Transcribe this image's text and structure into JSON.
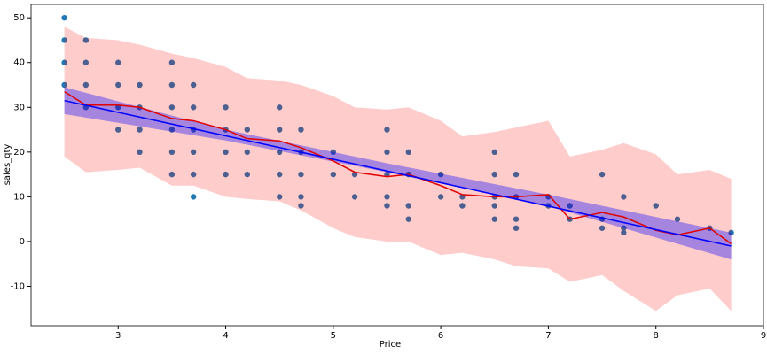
{
  "chart_data": {
    "type": "scatter",
    "xlabel": "Price",
    "ylabel": "sales_qty",
    "xlim": [
      2.19,
      9.0
    ],
    "ylim": [
      -18.8,
      53
    ],
    "xticks": [
      3,
      4,
      5,
      6,
      7,
      8,
      9
    ],
    "yticks": [
      -10,
      0,
      10,
      20,
      30,
      40,
      50
    ],
    "points": {
      "color": "#1f77b4",
      "x": [
        2.5,
        2.5,
        2.5,
        2.5,
        2.7,
        2.7,
        2.7,
        2.7,
        3.0,
        3.0,
        3.0,
        3.0,
        3.2,
        3.2,
        3.2,
        3.2,
        3.5,
        3.5,
        3.5,
        3.5,
        3.5,
        3.5,
        3.7,
        3.7,
        3.7,
        3.7,
        3.7,
        3.7,
        4.0,
        4.0,
        4.0,
        4.0,
        4.2,
        4.2,
        4.2,
        4.5,
        4.5,
        4.5,
        4.5,
        4.5,
        4.7,
        4.7,
        4.7,
        4.7,
        4.7,
        5.0,
        5.0,
        5.2,
        5.2,
        5.5,
        5.5,
        5.5,
        5.5,
        5.5,
        5.7,
        5.7,
        5.7,
        5.7,
        6.0,
        6.0,
        6.2,
        6.2,
        6.5,
        6.5,
        6.5,
        6.5,
        6.5,
        6.7,
        6.7,
        6.7,
        6.7,
        7.0,
        7.0,
        7.2,
        7.2,
        7.5,
        7.5,
        7.5,
        7.7,
        7.7,
        7.7,
        8.0,
        8.2,
        8.5,
        8.7
      ],
      "values": [
        50,
        45,
        40,
        35,
        45,
        40,
        35,
        30,
        40,
        35,
        30,
        25,
        35,
        30,
        25,
        20,
        40,
        35,
        30,
        25,
        20,
        15,
        35,
        30,
        25,
        20,
        15,
        10,
        30,
        25,
        20,
        15,
        25,
        20,
        15,
        30,
        25,
        20,
        15,
        10,
        25,
        20,
        15,
        10,
        8,
        20,
        15,
        15,
        10,
        25,
        20,
        15,
        10,
        8,
        20,
        15,
        8,
        5,
        15,
        10,
        10,
        8,
        20,
        15,
        10,
        8,
        5,
        15,
        10,
        5,
        3,
        10,
        8,
        8,
        5,
        15,
        5,
        3,
        10,
        3,
        2,
        8,
        5,
        3,
        2
      ]
    },
    "band": {
      "color": "#ff0000",
      "alpha": 0.2,
      "x": [
        2.5,
        2.7,
        3.0,
        3.2,
        3.5,
        3.7,
        4.0,
        4.2,
        4.5,
        4.7,
        5.0,
        5.2,
        5.5,
        5.7,
        6.0,
        6.2,
        6.5,
        6.7,
        7.0,
        7.2,
        7.5,
        7.7,
        8.0,
        8.2,
        8.5,
        8.7
      ],
      "lower": [
        19,
        15.5,
        16,
        16.5,
        12.5,
        12.5,
        10,
        9.5,
        9,
        7,
        3,
        1,
        0,
        0,
        -3,
        -2.5,
        -4,
        -5.5,
        -6,
        -9,
        -7.5,
        -11,
        -15.5,
        -12,
        -10.5,
        -15.5
      ],
      "upper": [
        48,
        45.5,
        45,
        44,
        42,
        41,
        39,
        36.5,
        36,
        35,
        32.5,
        30,
        29.5,
        30,
        27,
        23.5,
        24.5,
        25.5,
        27,
        19,
        20.5,
        22,
        19.5,
        15,
        16,
        14
      ]
    },
    "mean_line": {
      "color": "#e00000",
      "x": [
        2.5,
        2.7,
        3.0,
        3.2,
        3.5,
        3.7,
        4.0,
        4.2,
        4.5,
        4.7,
        5.0,
        5.2,
        5.5,
        5.7,
        6.0,
        6.2,
        6.5,
        6.7,
        7.0,
        7.2,
        7.5,
        7.7,
        8.0,
        8.2,
        8.5,
        8.7
      ],
      "values": [
        33.5,
        30.5,
        30.5,
        30,
        27.5,
        27,
        25,
        23,
        22.5,
        21,
        18,
        15.5,
        14.5,
        15,
        12.5,
        10.5,
        10,
        10,
        10.5,
        5,
        6.5,
        5.5,
        2.5,
        1.5,
        3,
        -0.5
      ]
    },
    "ci": {
      "color": "#0000ff",
      "alpha": 0.35,
      "x": [
        2.5,
        4.0,
        5.5,
        7.0,
        8.7
      ],
      "lower": [
        28.5,
        22.6,
        15.5,
        7.9,
        -4
      ],
      "upper": [
        34.5,
        25,
        17.5,
        10.5,
        2
      ]
    },
    "regression": {
      "color": "#0000ff",
      "x": [
        2.5,
        8.7
      ],
      "values": [
        31.5,
        -1
      ]
    }
  }
}
